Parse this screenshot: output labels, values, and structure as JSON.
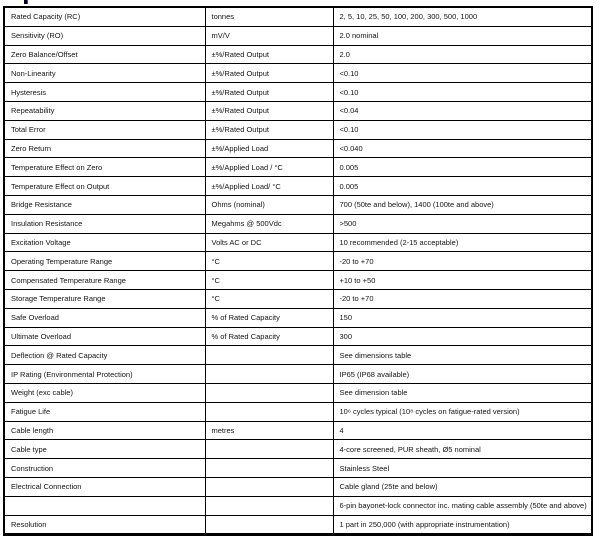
{
  "page": {
    "background": "#ffffff",
    "border_color": "#000000",
    "text_color": "#141414"
  },
  "table": {
    "rows": [
      {
        "parameter": "Rated Capacity (RC)",
        "unit": "tonnes",
        "value": "2, 5, 10, 25, 50, 100, 200, 300, 500, 1000"
      },
      {
        "parameter": "Sensitivity (RO)",
        "unit": "mV/V",
        "value": "2.0 nominal"
      },
      {
        "parameter": "Zero Balance/Offset",
        "unit": "±%/Rated Output",
        "value": "2.0"
      },
      {
        "parameter": "Non-Linearity",
        "unit": "±%/Rated Output",
        "value": "<0.10"
      },
      {
        "parameter": "Hysteresis",
        "unit": "±%/Rated Output",
        "value": "<0.10"
      },
      {
        "parameter": "Repeatability",
        "unit": "±%/Rated Output",
        "value": "<0.04"
      },
      {
        "parameter": "Total Error",
        "unit": "±%/Rated Output",
        "value": "<0.10"
      },
      {
        "parameter": "Zero Return",
        "unit": "±%/Applied Load",
        "value": "<0.040"
      },
      {
        "parameter": "Temperature Effect on Zero",
        "unit": "±%/Applied Load / °C",
        "value": "0.005"
      },
      {
        "parameter": "Temperature Effect on Output",
        "unit": "±%/Applied Load/ °C",
        "value": "0.005"
      },
      {
        "parameter": "Bridge Resistance",
        "unit": "Ohms (nominal)",
        "value": "700 (50te and below), 1400 (100te and above)"
      },
      {
        "parameter": "Insulation Resistance",
        "unit": "Megahms @ 500Vdc",
        "value": ">500"
      },
      {
        "parameter": "Excitation Voltage",
        "unit": "Volts AC or DC",
        "value": "10 recommended (2-15 acceptable)"
      },
      {
        "parameter": "Operating Temperature Range",
        "unit": "°C",
        "value": "-20 to +70"
      },
      {
        "parameter": "Compensated Temperature Range",
        "unit": "°C",
        "value": "+10 to +50"
      },
      {
        "parameter": "Storage Temperature Range",
        "unit": "°C",
        "value": "-20 to +70"
      },
      {
        "parameter": "Safe Overload",
        "unit": "% of Rated Capacity",
        "value": "150"
      },
      {
        "parameter": "Ultimate Overload",
        "unit": "% of Rated Capacity",
        "value": "300"
      },
      {
        "parameter": "Deflection @ Rated Capacity",
        "unit": "",
        "value": "See dimensions table"
      },
      {
        "parameter": "IP Rating (Environmental Protection)",
        "unit": "",
        "value": "IP65 (IP68 available)"
      },
      {
        "parameter": "Weight (exc cable)",
        "unit": "",
        "value": "See dimension table"
      },
      {
        "parameter": "Fatigue Life",
        "unit": "",
        "value": "10⁶ cycles typical (10⁸ cycles on fatigue-rated version)"
      },
      {
        "parameter": "Cable length",
        "unit": "metres",
        "value": "4"
      },
      {
        "parameter": "Cable type",
        "unit": "",
        "value": "4-core screened, PUR sheath, Ø5 nominal"
      },
      {
        "parameter": "Construction",
        "unit": "",
        "value": "Stainless Steel"
      },
      {
        "parameter": "Electrical Connection",
        "unit": "",
        "value": "Cable gland (25te and below)"
      },
      {
        "parameter": "",
        "unit": "",
        "value": "6-pin bayonet-lock connector inc. mating cable assembly (50te and above)"
      },
      {
        "parameter": "Resolution",
        "unit": "",
        "value": "1 part in 250,000 (with appropriate instrumentation)"
      }
    ]
  }
}
